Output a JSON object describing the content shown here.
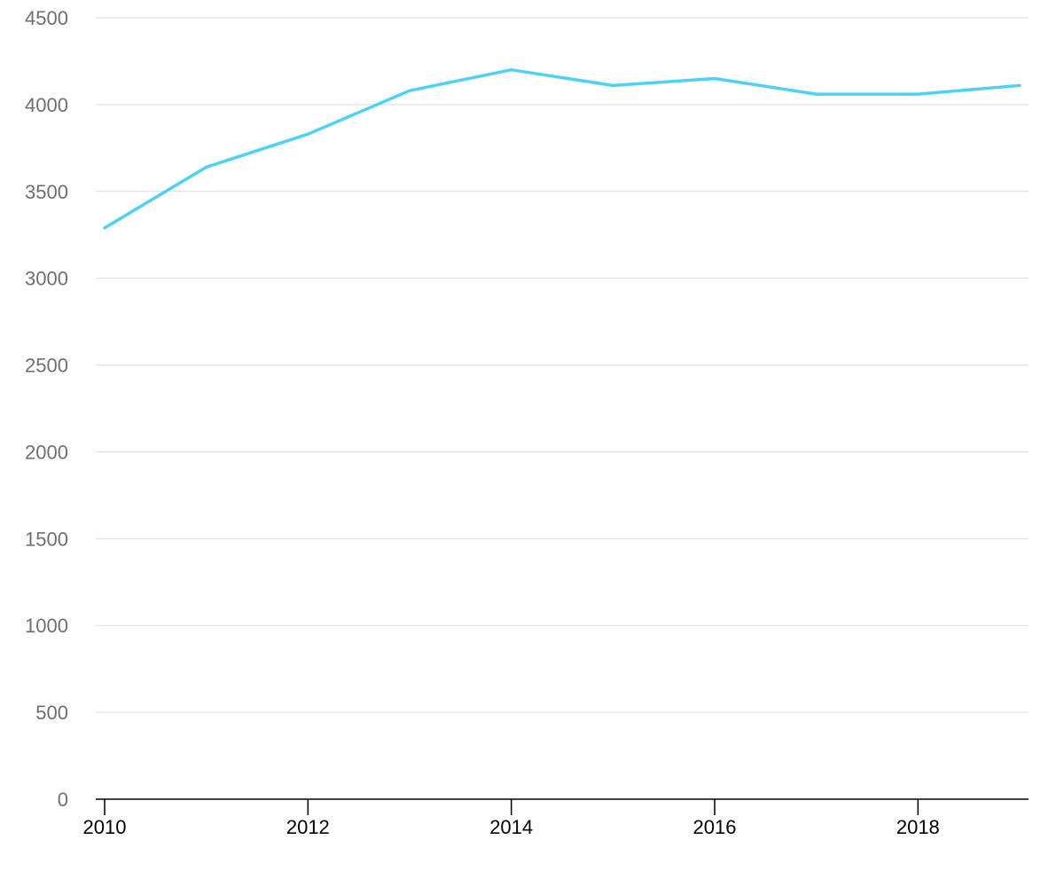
{
  "chart_data": {
    "type": "line",
    "title": "",
    "xlabel": "",
    "ylabel": "",
    "x": [
      2010,
      2011,
      2012,
      2013,
      2014,
      2015,
      2016,
      2017,
      2018,
      2019
    ],
    "series": [
      {
        "values": [
          3290,
          3640,
          3830,
          4080,
          4200,
          4110,
          4150,
          4060,
          4060,
          4110
        ],
        "color": "#4dd2f5"
      }
    ],
    "xlim": [
      2010,
      2019
    ],
    "ylim": [
      0,
      4500
    ],
    "x_ticks": [
      2010,
      2012,
      2014,
      2016,
      2018
    ],
    "y_ticks": [
      0,
      500,
      1000,
      1500,
      2000,
      2500,
      3000,
      3500,
      4000,
      4500
    ],
    "x_tick_labels": [
      "2010",
      "2012",
      "2014",
      "2016",
      "2018"
    ],
    "y_tick_labels": [
      "0",
      "500",
      "1000",
      "1500",
      "2000",
      "2500",
      "3000",
      "3500",
      "4000",
      "4500"
    ],
    "grid": "horizontal",
    "legend": "none"
  }
}
